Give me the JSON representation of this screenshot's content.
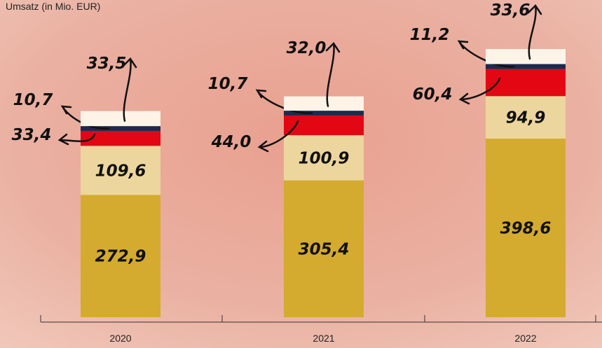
{
  "chart_data": {
    "type": "stacked-bar",
    "title": "Umsatz (in Mio. EUR)",
    "categories": [
      "2020",
      "2021",
      "2022"
    ],
    "series": [
      {
        "color": "#d4ab2e",
        "values": [
          272.9,
          305.4,
          398.6
        ],
        "value_labels": [
          "272,9",
          "305,4",
          "398,6"
        ]
      },
      {
        "color": "#ecd69d",
        "values": [
          109.6,
          100.9,
          94.9
        ],
        "value_labels": [
          "109,6",
          "100,9",
          "94,9"
        ]
      },
      {
        "color": "#e30613",
        "values": [
          33.4,
          44.0,
          60.4
        ],
        "value_labels": [
          "33,4",
          "44,0",
          "60,4"
        ]
      },
      {
        "color": "#1b2a4e",
        "values": [
          10.7,
          10.7,
          11.2
        ],
        "value_labels": [
          "10,7",
          "10,7",
          "11,2"
        ]
      },
      {
        "color": "#fdf3e7",
        "values": [
          33.5,
          32.0,
          33.6
        ],
        "value_labels": [
          "33,5",
          "32,0",
          "33,6"
        ]
      }
    ]
  }
}
